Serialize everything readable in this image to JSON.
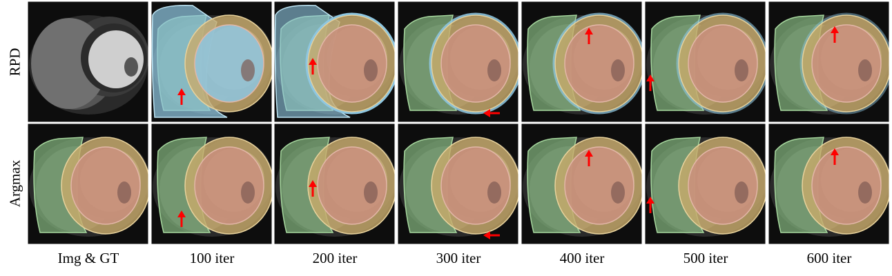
{
  "rows": [
    {
      "label": "RPD"
    },
    {
      "label": "Argmax"
    }
  ],
  "columns": [
    {
      "label": "Img & GT"
    },
    {
      "label": "100 iter"
    },
    {
      "label": "200 iter"
    },
    {
      "label": "300 iter"
    },
    {
      "label": "400 iter"
    },
    {
      "label": "500 iter"
    },
    {
      "label": "600 iter"
    }
  ],
  "colors": {
    "background_tissue": "#1a1a1a",
    "rv_green": "#7fae7a",
    "lv_pink": "#c98f7e",
    "myo_gold": "#c9ab6b",
    "uncertain_blue": "#8ec6e0",
    "arrow_red": "#ff0000"
  }
}
